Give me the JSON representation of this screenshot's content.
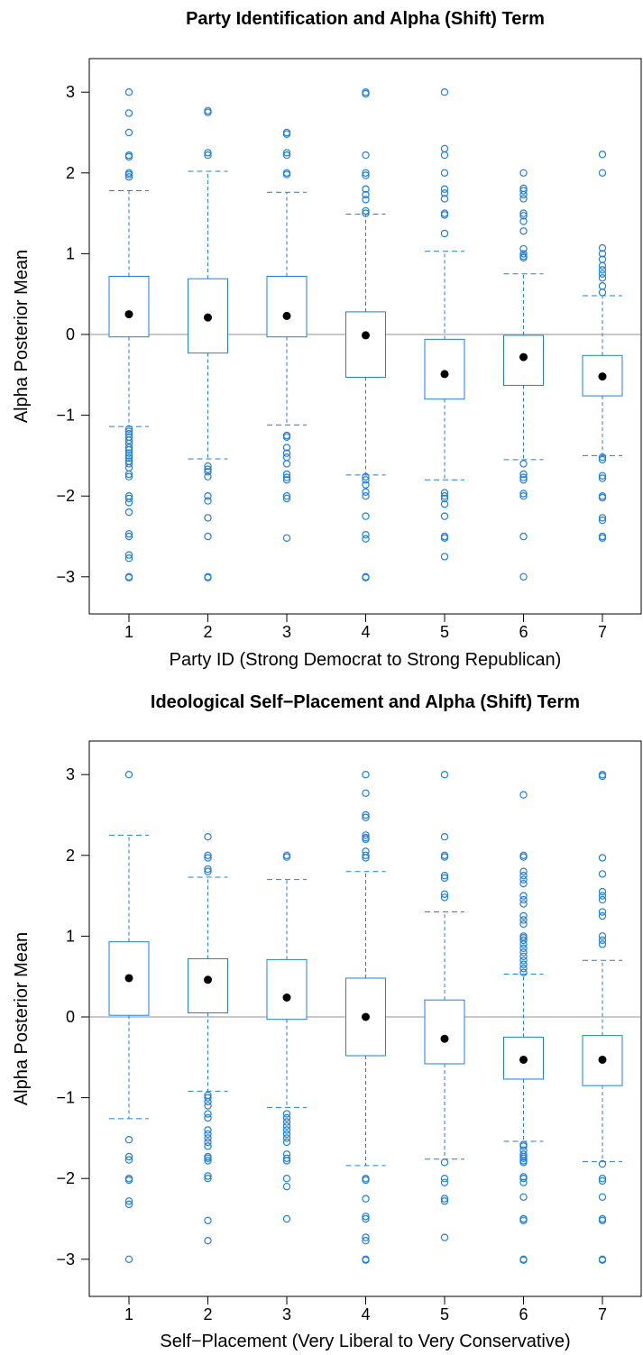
{
  "colors": {
    "box": "#1f7fe0",
    "median": "#000000",
    "reference": "#c8c8c8"
  },
  "chart_data": [
    {
      "type": "box",
      "title": "Party Identification and Alpha (Shift) Term",
      "xlabel": "Party ID (Strong Democrat to Strong Republican)",
      "ylabel": "Alpha Posterior Mean",
      "ylim": [
        -3.45,
        3.45
      ],
      "yticks": [
        -3,
        -2,
        -1,
        0,
        1,
        2,
        3
      ],
      "ytick_labels": [
        "−3",
        "−2",
        "−1",
        "0",
        "1",
        "2",
        "3"
      ],
      "reference_line": 0,
      "categories": [
        "1",
        "2",
        "3",
        "4",
        "5",
        "6",
        "7"
      ],
      "boxes": [
        {
          "category": "1",
          "median": 0.25,
          "q1": -0.03,
          "q3": 0.72,
          "whisker_low": -1.14,
          "whisker_high": 1.78,
          "outliers": [
            3.0,
            2.74,
            2.5,
            2.22,
            2.2,
            2.0,
            1.98,
            1.95,
            -1.17,
            -1.2,
            -1.23,
            -1.27,
            -1.31,
            -1.35,
            -1.4,
            -1.43,
            -1.47,
            -1.5,
            -1.53,
            -1.57,
            -1.6,
            -1.65,
            -1.73,
            -1.76,
            -2.0,
            -2.03,
            -2.08,
            -2.2,
            -2.47,
            -2.5,
            -2.73,
            -2.77,
            -3.0,
            -3.01
          ]
        },
        {
          "category": "2",
          "median": 0.21,
          "q1": -0.23,
          "q3": 0.69,
          "whisker_low": -1.54,
          "whisker_high": 2.02,
          "outliers": [
            2.77,
            2.75,
            2.25,
            2.22,
            -1.63,
            -1.67,
            -1.7,
            -1.76,
            -2.0,
            -2.06,
            -2.27,
            -2.5,
            -3.0,
            -3.01
          ]
        },
        {
          "category": "3",
          "median": 0.23,
          "q1": -0.03,
          "q3": 0.72,
          "whisker_low": -1.12,
          "whisker_high": 1.76,
          "outliers": [
            2.5,
            2.48,
            2.25,
            2.22,
            2.0,
            1.98,
            -1.25,
            -1.27,
            -1.4,
            -1.47,
            -1.52,
            -1.6,
            -1.73,
            -1.77,
            -1.8,
            -2.0,
            -2.03,
            -2.52
          ]
        },
        {
          "category": "4",
          "median": -0.01,
          "q1": -0.53,
          "q3": 0.28,
          "whisker_low": -1.74,
          "whisker_high": 1.49,
          "outliers": [
            3.0,
            2.98,
            2.22,
            2.0,
            1.97,
            1.8,
            1.73,
            1.67,
            1.53,
            1.5,
            -1.76,
            -1.8,
            -1.86,
            -1.95,
            -2.0,
            -2.25,
            -2.48,
            -2.53,
            -3.0,
            -3.01
          ]
        },
        {
          "category": "5",
          "median": -0.49,
          "q1": -0.8,
          "q3": -0.06,
          "whisker_low": -1.8,
          "whisker_high": 1.03,
          "outliers": [
            3.0,
            2.3,
            2.22,
            2.0,
            1.8,
            1.75,
            1.68,
            1.5,
            1.48,
            1.25,
            -1.96,
            -2.0,
            -2.03,
            -2.1,
            -2.25,
            -2.5,
            -2.52,
            -2.75
          ]
        },
        {
          "category": "6",
          "median": -0.28,
          "q1": -0.63,
          "q3": -0.01,
          "whisker_low": -1.55,
          "whisker_high": 0.75,
          "outliers": [
            2.0,
            1.81,
            1.78,
            1.73,
            1.68,
            1.5,
            1.47,
            1.4,
            1.28,
            1.06,
            1.0,
            0.97,
            0.95,
            -1.6,
            -1.73,
            -1.77,
            -1.8,
            -1.97,
            -2.0,
            -2.5,
            -3.0
          ]
        },
        {
          "category": "7",
          "median": -0.52,
          "q1": -0.76,
          "q3": -0.26,
          "whisker_low": -1.5,
          "whisker_high": 0.48,
          "outliers": [
            2.23,
            2.0,
            1.07,
            1.0,
            0.93,
            0.85,
            0.8,
            0.75,
            0.7,
            0.6,
            0.52,
            -1.52,
            -1.55,
            -1.75,
            -1.78,
            -2.0,
            -2.02,
            -2.27,
            -2.3,
            -2.5,
            -2.52
          ]
        }
      ]
    },
    {
      "type": "box",
      "title": "Ideological Self−Placement and Alpha (Shift) Term",
      "xlabel": "Self−Placement (Very Liberal to Very Conservative)",
      "ylabel": "Alpha Posterior Mean",
      "ylim": [
        -3.45,
        3.45
      ],
      "yticks": [
        -3,
        -2,
        -1,
        0,
        1,
        2,
        3
      ],
      "ytick_labels": [
        "−3",
        "−2",
        "−1",
        "0",
        "1",
        "2",
        "3"
      ],
      "reference_line": 0,
      "categories": [
        "1",
        "2",
        "3",
        "4",
        "5",
        "6",
        "7"
      ],
      "boxes": [
        {
          "category": "1",
          "median": 0.48,
          "q1": 0.02,
          "q3": 0.93,
          "whisker_low": -1.26,
          "whisker_high": 2.25,
          "outliers": [
            3.0,
            -1.52,
            -1.73,
            -1.77,
            -2.0,
            -2.02,
            -2.28,
            -2.32,
            -3.0
          ]
        },
        {
          "category": "2",
          "median": 0.46,
          "q1": 0.05,
          "q3": 0.72,
          "whisker_low": -0.92,
          "whisker_high": 1.73,
          "outliers": [
            2.23,
            2.0,
            1.97,
            1.83,
            1.8,
            -0.97,
            -1.0,
            -1.05,
            -1.1,
            -1.2,
            -1.25,
            -1.4,
            -1.45,
            -1.5,
            -1.55,
            -1.6,
            -1.73,
            -1.75,
            -1.78,
            -1.97,
            -2.0,
            -2.52,
            -2.77
          ]
        },
        {
          "category": "3",
          "median": 0.24,
          "q1": -0.03,
          "q3": 0.71,
          "whisker_low": -1.12,
          "whisker_high": 1.7,
          "outliers": [
            2.0,
            1.98,
            -1.2,
            -1.25,
            -1.3,
            -1.35,
            -1.4,
            -1.45,
            -1.5,
            -1.55,
            -1.7,
            -1.75,
            -1.78,
            -2.0,
            -2.1,
            -2.5
          ]
        },
        {
          "category": "4",
          "median": 0.0,
          "q1": -0.48,
          "q3": 0.48,
          "whisker_low": -1.84,
          "whisker_high": 1.8,
          "outliers": [
            3.0,
            2.77,
            2.5,
            2.47,
            2.25,
            2.22,
            2.2,
            2.05,
            2.0,
            1.97,
            -2.0,
            -2.02,
            -2.25,
            -2.47,
            -2.5,
            -2.73,
            -2.77,
            -3.0,
            -3.01
          ]
        },
        {
          "category": "5",
          "median": -0.27,
          "q1": -0.58,
          "q3": 0.21,
          "whisker_low": -1.76,
          "whisker_high": 1.3,
          "outliers": [
            3.0,
            2.23,
            2.0,
            1.98,
            1.75,
            1.72,
            1.52,
            1.48,
            -1.8,
            -2.0,
            -2.05,
            -2.25,
            -2.28,
            -2.73
          ]
        },
        {
          "category": "6",
          "median": -0.53,
          "q1": -0.77,
          "q3": -0.25,
          "whisker_low": -1.54,
          "whisker_high": 0.53,
          "outliers": [
            2.75,
            2.0,
            1.98,
            1.8,
            1.75,
            1.7,
            1.65,
            1.5,
            1.45,
            1.4,
            1.25,
            1.2,
            1.15,
            1.0,
            0.98,
            0.95,
            0.9,
            0.85,
            0.8,
            0.75,
            0.7,
            0.65,
            0.6,
            0.55,
            -1.58,
            -1.6,
            -1.65,
            -1.7,
            -1.73,
            -1.75,
            -1.78,
            -1.8,
            -1.98,
            -2.0,
            -2.05,
            -2.23,
            -2.5,
            -2.52,
            -3.0,
            -3.01
          ]
        },
        {
          "category": "7",
          "median": -0.53,
          "q1": -0.85,
          "q3": -0.23,
          "whisker_low": -1.79,
          "whisker_high": 0.7,
          "outliers": [
            3.0,
            2.98,
            1.97,
            1.77,
            1.55,
            1.5,
            1.45,
            1.3,
            1.25,
            1.0,
            0.95,
            0.9,
            -1.82,
            -2.0,
            -2.03,
            -2.23,
            -2.5,
            -2.52,
            -3.0,
            -3.01
          ]
        }
      ]
    }
  ]
}
